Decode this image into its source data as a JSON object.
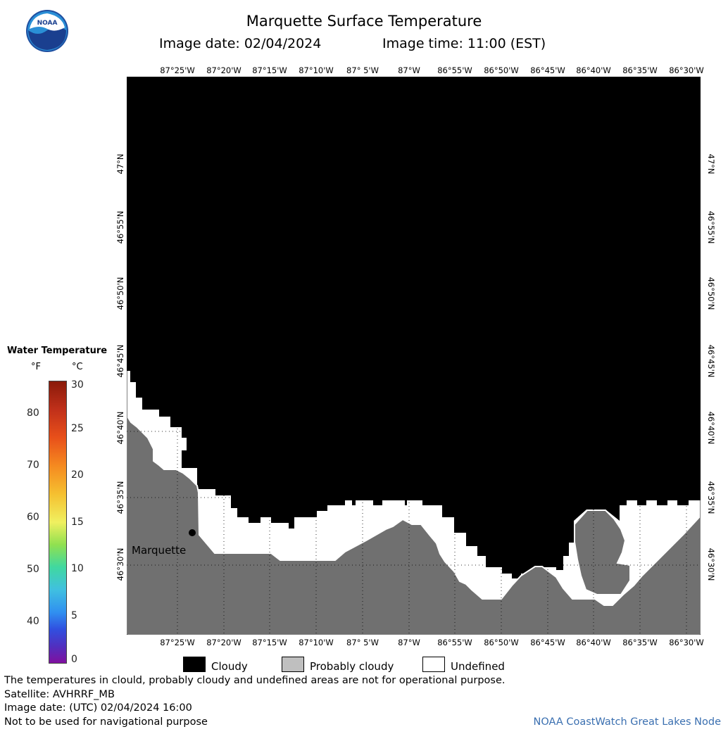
{
  "header": {
    "title": "Marquette Surface Temperature",
    "image_date": "Image date: 02/04/2024",
    "image_time": "Image time: 11:00 (EST)"
  },
  "logo": {
    "text": "NOAA",
    "icon": "noaa-logo-icon"
  },
  "axes": {
    "lon_labels": [
      "87°25'W",
      "87°20'W",
      "87°15'W",
      "87°10'W",
      "87° 5'W",
      "87°W",
      "86°55'W",
      "86°50'W",
      "86°45'W",
      "86°40'W",
      "86°35'W",
      "86°30'W"
    ],
    "lat_labels": [
      "47°N",
      "46°55'N",
      "46°50'N",
      "46°45'N",
      "46°40'N",
      "46°35'N",
      "46°30'N"
    ]
  },
  "map": {
    "place_label": "Marquette",
    "colors": {
      "cloudy": "#000000",
      "probably_cloudy": "#707070",
      "undefined": "#ffffff"
    }
  },
  "legend": {
    "title": "Water Temperature",
    "unit_f": "°F",
    "unit_c": "°C",
    "fahrenheit": [
      "80",
      "70",
      "60",
      "50",
      "40"
    ],
    "celsius": [
      "30",
      "25",
      "20",
      "15",
      "10",
      "5",
      "0"
    ]
  },
  "key": {
    "cloudy": "Cloudy",
    "probably_cloudy": "Probably cloudy",
    "undefined": "Undefined"
  },
  "footer": {
    "note": "The temperatures in clould, probably cloudy and undefined areas are not for operational purpose.",
    "satellite": "Satellite: AVHRRF_MB",
    "utc_date": "Image date: (UTC) 02/04/2024  16:00",
    "navigation": "Not to be used for navigational purpose",
    "credit": "NOAA CoastWatch Great Lakes Node"
  }
}
